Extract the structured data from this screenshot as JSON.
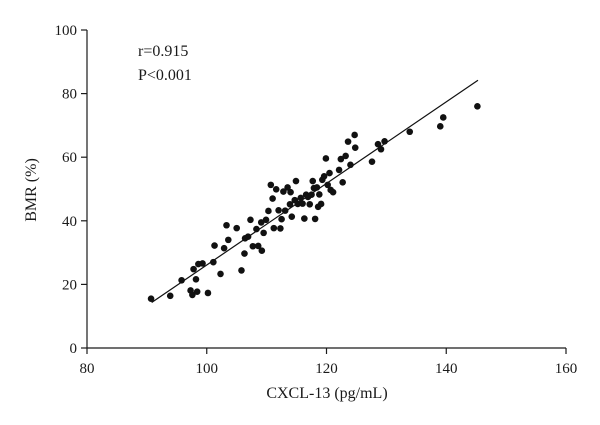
{
  "chart_data": {
    "type": "scatter",
    "xlabel": "CXCL-13 (pg/mL)",
    "ylabel": "BMR (%)",
    "xlim": [
      80,
      160
    ],
    "ylim": [
      0,
      100
    ],
    "x_ticks": [
      80,
      100,
      120,
      140,
      160
    ],
    "y_ticks": [
      0,
      20,
      40,
      60,
      80,
      100
    ],
    "grid": false,
    "annotations": [
      "r=0.915",
      "P<0.001"
    ],
    "fit_line": {
      "x": [
        90.8,
        145.3
      ],
      "y": [
        14.3,
        84.2
      ]
    },
    "points": [
      [
        90.7,
        15.5
      ],
      [
        93.9,
        16.4
      ],
      [
        95.8,
        21.3
      ],
      [
        97.3,
        18.1
      ],
      [
        97.6,
        16.7
      ],
      [
        97.8,
        24.8
      ],
      [
        98.2,
        21.6
      ],
      [
        98.4,
        17.7
      ],
      [
        98.6,
        26.4
      ],
      [
        99.3,
        26.6
      ],
      [
        100.2,
        17.3
      ],
      [
        101.1,
        27.0
      ],
      [
        101.3,
        32.2
      ],
      [
        102.3,
        23.3
      ],
      [
        102.9,
        31.4
      ],
      [
        103.3,
        38.6
      ],
      [
        103.6,
        34.0
      ],
      [
        105.0,
        37.7
      ],
      [
        105.8,
        24.4
      ],
      [
        106.3,
        29.7
      ],
      [
        106.4,
        34.5
      ],
      [
        106.9,
        35.0
      ],
      [
        107.3,
        40.3
      ],
      [
        107.7,
        32.0
      ],
      [
        108.3,
        37.4
      ],
      [
        108.6,
        32.1
      ],
      [
        109.1,
        39.5
      ],
      [
        109.2,
        30.6
      ],
      [
        109.5,
        36.2
      ],
      [
        109.9,
        40.3
      ],
      [
        110.3,
        43.1
      ],
      [
        110.7,
        51.3
      ],
      [
        111.0,
        47.0
      ],
      [
        111.2,
        37.7
      ],
      [
        111.6,
        49.9
      ],
      [
        112.0,
        43.3
      ],
      [
        112.3,
        37.6
      ],
      [
        112.5,
        40.5
      ],
      [
        112.8,
        49.2
      ],
      [
        113.1,
        43.2
      ],
      [
        113.5,
        50.5
      ],
      [
        113.9,
        45.2
      ],
      [
        114.0,
        49.0
      ],
      [
        114.2,
        41.3
      ],
      [
        114.7,
        46.5
      ],
      [
        114.9,
        52.5
      ],
      [
        115.2,
        45.3
      ],
      [
        115.7,
        47.2
      ],
      [
        116.0,
        45.4
      ],
      [
        116.3,
        40.7
      ],
      [
        116.6,
        48.2
      ],
      [
        116.9,
        47.5
      ],
      [
        117.2,
        45.2
      ],
      [
        117.5,
        48.2
      ],
      [
        117.7,
        52.5
      ],
      [
        117.9,
        50.3
      ],
      [
        118.1,
        40.6
      ],
      [
        118.4,
        50.5
      ],
      [
        118.6,
        44.4
      ],
      [
        118.8,
        48.3
      ],
      [
        119.1,
        45.3
      ],
      [
        119.3,
        52.9
      ],
      [
        119.6,
        54.0
      ],
      [
        119.9,
        59.6
      ],
      [
        120.2,
        51.3
      ],
      [
        120.5,
        55.0
      ],
      [
        120.7,
        49.7
      ],
      [
        121.1,
        49.0
      ],
      [
        122.1,
        56.0
      ],
      [
        122.4,
        59.4
      ],
      [
        122.7,
        52.1
      ],
      [
        123.2,
        60.4
      ],
      [
        123.6,
        64.9
      ],
      [
        124.0,
        57.6
      ],
      [
        124.7,
        67.0
      ],
      [
        124.8,
        63.0
      ],
      [
        127.6,
        58.6
      ],
      [
        128.6,
        64.1
      ],
      [
        129.1,
        62.5
      ],
      [
        129.7,
        65.0
      ],
      [
        133.9,
        68.0
      ],
      [
        139.0,
        69.7
      ],
      [
        139.5,
        72.5
      ],
      [
        145.2,
        76.0
      ]
    ]
  }
}
